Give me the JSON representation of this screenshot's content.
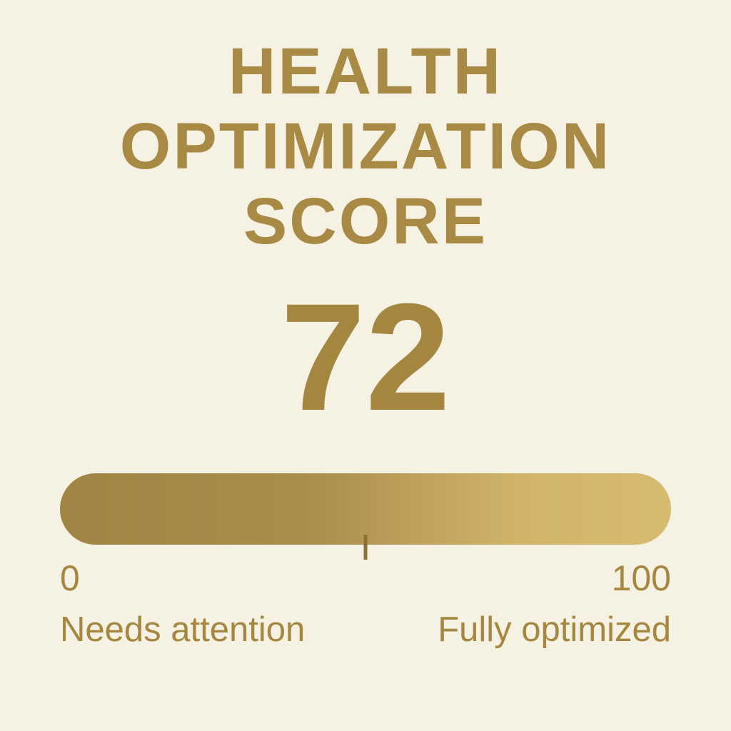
{
  "theme": {
    "background": "#f5f1e3",
    "title_color": "#a88a45",
    "score_color": "#a5863f",
    "label_color": "#a5873f",
    "tick_color": "#8a7034",
    "bar_gradient_start": "#a18343",
    "bar_gradient_end": "#d7bb70"
  },
  "title": {
    "lines": [
      "HEALTH",
      "OPTIMIZATION",
      "SCORE"
    ]
  },
  "score": {
    "value": "72"
  },
  "scale": {
    "min_label": "0",
    "max_label": "100",
    "low_caption": "Needs attention",
    "high_caption": "Fully optimized",
    "tick_position_percent": 50
  },
  "chart_data": {
    "type": "gauge",
    "title": "HEALTH OPTIMIZATION SCORE",
    "value": 72,
    "range": [
      0,
      100
    ],
    "tick_labels": [
      "0",
      "100"
    ],
    "tick_marks_percent": [
      50
    ],
    "annotations": [
      "Needs attention",
      "Fully optimized"
    ],
    "orientation": "horizontal",
    "bar_gradient": [
      "#a18343",
      "#d7bb70"
    ]
  }
}
